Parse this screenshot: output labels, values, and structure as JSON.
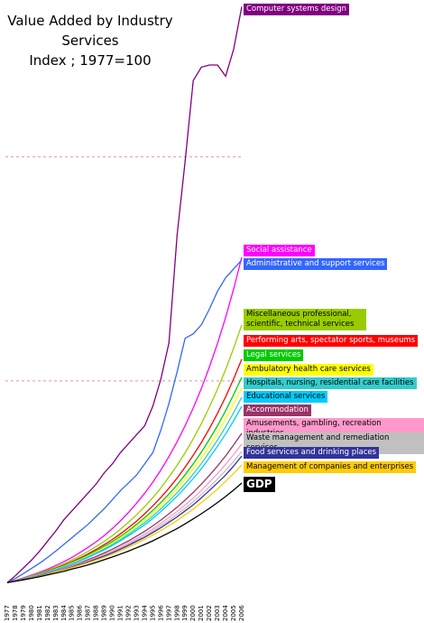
{
  "chart_data": {
    "type": "line",
    "title": "Value Added by Industry Services",
    "subtitle": "Index ; 1977=100",
    "categories": [
      "1977",
      "1978",
      "1979",
      "1980",
      "1981",
      "1982",
      "1983",
      "1984",
      "1985",
      "1986",
      "1987",
      "1988",
      "1989",
      "1990",
      "1991",
      "1992",
      "1993",
      "1994",
      "1995",
      "1996",
      "1997",
      "1998",
      "1999",
      "2000",
      "2001",
      "2002",
      "2003",
      "2004",
      "2005",
      "2006"
    ],
    "ylim": [
      0,
      2700
    ],
    "grid_lines": [
      1000,
      2000
    ],
    "series": [
      {
        "name": "Computer systems design",
        "color": "#800080",
        "values": [
          100,
          130,
          165,
          200,
          240,
          285,
          330,
          380,
          420,
          460,
          500,
          540,
          590,
          630,
          680,
          720,
          760,
          800,
          887,
          1008,
          1170,
          1650,
          1980,
          2340,
          2400,
          2410,
          2410,
          2360,
          2480,
          2670
        ]
      },
      {
        "name": "Social assistance",
        "color": "#ff00ff",
        "values": [
          100,
          110,
          121,
          133,
          146,
          160,
          176,
          193,
          212,
          234,
          257,
          282,
          310,
          341,
          375,
          413,
          454,
          499,
          548,
          602,
          662,
          728,
          800,
          879,
          966,
          1062,
          1167,
          1283,
          1410,
          1552
        ]
      },
      {
        "name": "Administrative and support services",
        "color": "#3366ff",
        "values": [
          100,
          118,
          140,
          163,
          186,
          212,
          240,
          270,
          300,
          330,
          360,
          395,
          430,
          470,
          510,
          545,
          580,
          630,
          680,
          780,
          900,
          1040,
          1190,
          1210,
          1250,
          1320,
          1400,
          1460,
          1500,
          1540
        ]
      },
      {
        "name": "Miscellaneous professional, scientific, technical services",
        "color": "#99cc00",
        "values": [
          100,
          109,
          119,
          130,
          142,
          155,
          169,
          184,
          201,
          219,
          239,
          261,
          284,
          310,
          338,
          369,
          402,
          439,
          479,
          522,
          571,
          623,
          679,
          741,
          809,
          883,
          963,
          1051,
          1146,
          1250
        ]
      },
      {
        "name": "Performing arts, spectator sports, museums",
        "color": "#ff0000",
        "values": [
          100,
          109,
          118,
          128,
          139,
          151,
          164,
          178,
          193,
          210,
          228,
          248,
          269,
          292,
          317,
          345,
          374,
          407,
          442,
          480,
          521,
          566,
          615,
          668,
          725,
          787,
          855,
          929,
          1009,
          1097
        ]
      },
      {
        "name": "Legal services",
        "color": "#00cc00",
        "values": [
          100,
          108,
          118,
          127,
          138,
          149,
          162,
          175,
          190,
          206,
          223,
          241,
          261,
          283,
          306,
          332,
          360,
          390,
          422,
          457,
          495,
          536,
          581,
          630,
          682,
          739,
          800,
          867,
          939,
          1016
        ]
      },
      {
        "name": "Ambulatory health care services",
        "color": "#ffff00",
        "values": [
          100,
          108,
          117,
          127,
          137,
          148,
          160,
          173,
          187,
          202,
          219,
          237,
          256,
          277,
          300,
          324,
          351,
          379,
          410,
          443,
          479,
          518,
          561,
          607,
          656,
          708,
          767,
          830,
          898,
          968
        ]
      },
      {
        "name": "Hospitals, nursing, residential care facilities",
        "color": "#33cccc",
        "values": [
          100,
          108,
          117,
          126,
          136,
          147,
          158,
          171,
          184,
          199,
          215,
          232,
          250,
          270,
          292,
          316,
          341,
          368,
          397,
          429,
          464,
          501,
          541,
          584,
          631,
          682,
          736,
          795,
          858,
          927
        ]
      },
      {
        "name": "Educational services",
        "color": "#00ccff",
        "values": [
          100,
          108,
          116,
          125,
          135,
          146,
          157,
          169,
          182,
          197,
          212,
          229,
          246,
          265,
          286,
          309,
          333,
          358,
          386,
          417,
          451,
          485,
          523,
          564,
          608,
          657,
          708,
          763,
          822,
          887
        ]
      },
      {
        "name": "Accommodation",
        "color": "#993366",
        "values": [
          100,
          107,
          115,
          123,
          132,
          142,
          152,
          163,
          175,
          188,
          202,
          216,
          232,
          249,
          267,
          286,
          307,
          329,
          353,
          379,
          407,
          436,
          468,
          502,
          539,
          578,
          620,
          665,
          714,
          766
        ]
      },
      {
        "name": "Amusements, gambling, recreation industries",
        "color": "#ff99cc",
        "values": [
          100,
          107,
          115,
          123,
          132,
          141,
          151,
          161,
          172,
          184,
          197,
          211,
          226,
          241,
          258,
          277,
          296,
          317,
          339,
          364,
          390,
          417,
          446,
          477,
          511,
          548,
          586,
          627,
          671,
          718
        ]
      },
      {
        "name": "Waste management and remediation services",
        "color": "#c0c0c0",
        "values": [
          100,
          107,
          114,
          122,
          130,
          139,
          149,
          159,
          170,
          182,
          194,
          207,
          221,
          237,
          253,
          271,
          289,
          309,
          330,
          354,
          378,
          404,
          432,
          461,
          493,
          527,
          562,
          600,
          641,
          685
        ]
      },
      {
        "name": "Food services and drinking places",
        "color": "#333399",
        "values": [
          100,
          107,
          114,
          121,
          130,
          139,
          148,
          158,
          169,
          180,
          192,
          205,
          218,
          233,
          249,
          266,
          284,
          302,
          323,
          345,
          369,
          393,
          420,
          447,
          478,
          511,
          545,
          580,
          620,
          665
        ]
      },
      {
        "name": "Management of companies and enterprises",
        "color": "#ffcc00",
        "values": [
          100,
          107,
          113,
          120,
          128,
          137,
          147,
          156,
          166,
          177,
          188,
          200,
          213,
          227,
          242,
          258,
          275,
          293,
          312,
          332,
          354,
          377,
          402,
          428,
          456,
          486,
          517,
          552,
          587,
          625
        ]
      },
      {
        "name": "GDP",
        "color": "#000000",
        "values": [
          100,
          106,
          112,
          119,
          126,
          134,
          142,
          150,
          160,
          169,
          179,
          190,
          202,
          214,
          227,
          240,
          255,
          270,
          286,
          304,
          322,
          341,
          362,
          384,
          407,
          431,
          457,
          484,
          513,
          544
        ]
      }
    ]
  }
}
